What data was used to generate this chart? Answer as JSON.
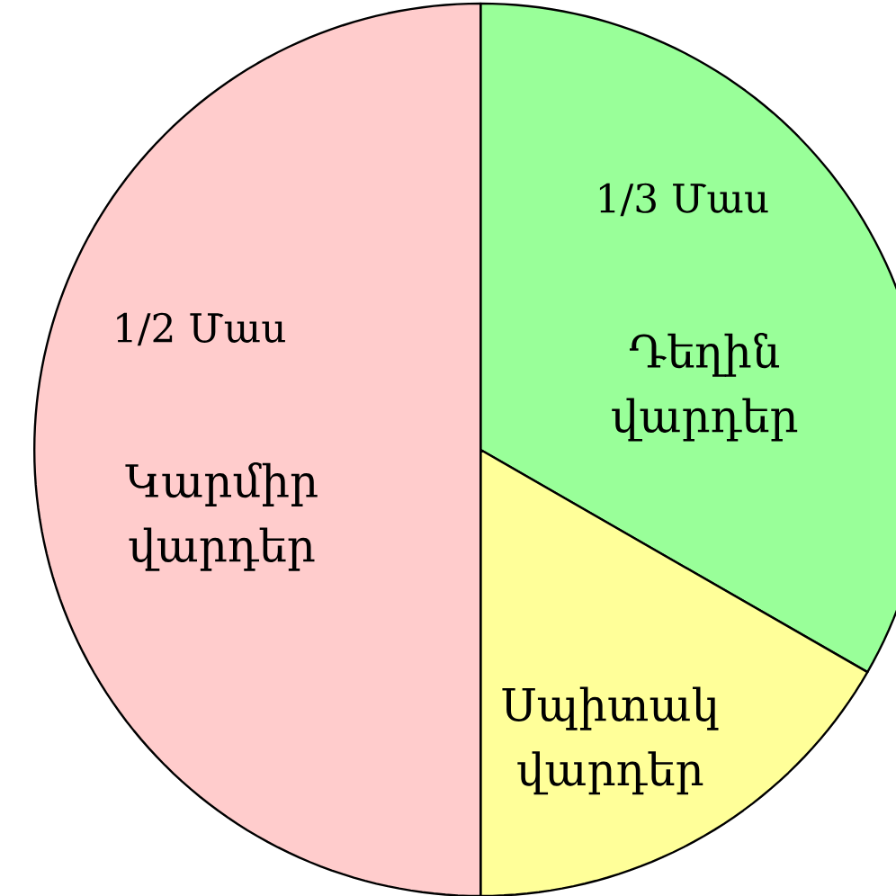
{
  "chart_data": {
    "type": "pie",
    "categories": [
      "Դեղին վարդեր",
      "Սպիտակ վարդեր",
      "Կարմիր վարդեր"
    ],
    "values": [
      33.3,
      16.7,
      50
    ],
    "colors": [
      "#99ff99",
      "#ffff99",
      "#ffcccc"
    ],
    "value_labels": [
      "1/3 Մաս",
      null,
      "1/2 Մաս"
    ]
  }
}
